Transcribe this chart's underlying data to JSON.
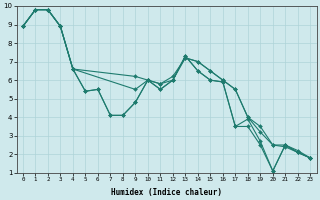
{
  "xlabel": "Humidex (Indice chaleur)",
  "bg_color": "#cfe9ec",
  "grid_color": "#afd4d8",
  "line_color": "#1e7b6e",
  "xlim": [
    -0.5,
    23.5
  ],
  "ylim": [
    1,
    10
  ],
  "xtick_labels": [
    "0",
    "1",
    "2",
    "3",
    "4",
    "5",
    "6",
    "7",
    "8",
    "9",
    "10",
    "11",
    "12",
    "13",
    "14",
    "15",
    "16",
    "17",
    "18",
    "19",
    "20",
    "21",
    "22",
    "23"
  ],
  "lines": [
    {
      "x": [
        0,
        1,
        2,
        3,
        4,
        5,
        6,
        7,
        8,
        9,
        10,
        11,
        12,
        13,
        14,
        15,
        16,
        17,
        18,
        19,
        20,
        21,
        22,
        23
      ],
      "y": [
        8.9,
        9.8,
        9.8,
        8.9,
        6.6,
        5.4,
        5.5,
        4.1,
        4.1,
        4.8,
        6.0,
        5.5,
        6.0,
        7.3,
        6.5,
        6.0,
        5.9,
        3.5,
        3.5,
        2.5,
        1.1,
        2.5,
        2.1,
        1.8
      ]
    },
    {
      "x": [
        0,
        1,
        2,
        3,
        4,
        5,
        6,
        7,
        8,
        9,
        10,
        11,
        12,
        13,
        14,
        15,
        16,
        17,
        18,
        19,
        20,
        21,
        22,
        23
      ],
      "y": [
        8.9,
        9.8,
        9.8,
        8.9,
        6.6,
        5.4,
        5.5,
        4.1,
        4.1,
        4.8,
        6.0,
        5.5,
        6.0,
        7.3,
        6.5,
        6.0,
        5.9,
        3.5,
        3.9,
        2.7,
        1.1,
        2.5,
        2.2,
        1.8
      ]
    },
    {
      "x": [
        0,
        1,
        2,
        3,
        4,
        9,
        10,
        11,
        12,
        13,
        14,
        15,
        16,
        17,
        18,
        19,
        20,
        21,
        22,
        23
      ],
      "y": [
        8.9,
        9.8,
        9.8,
        8.9,
        6.6,
        6.2,
        6.0,
        5.8,
        6.0,
        7.2,
        7.0,
        6.5,
        6.0,
        5.5,
        4.0,
        3.2,
        2.5,
        2.4,
        2.1,
        1.8
      ]
    },
    {
      "x": [
        0,
        1,
        2,
        3,
        4,
        9,
        10,
        11,
        12,
        13,
        14,
        15,
        16,
        17,
        18,
        19,
        20,
        21,
        22,
        23
      ],
      "y": [
        8.9,
        9.8,
        9.8,
        8.9,
        6.6,
        5.5,
        6.0,
        5.8,
        6.2,
        7.2,
        7.0,
        6.5,
        6.0,
        5.5,
        4.0,
        3.5,
        2.5,
        2.5,
        2.1,
        1.8
      ]
    }
  ]
}
